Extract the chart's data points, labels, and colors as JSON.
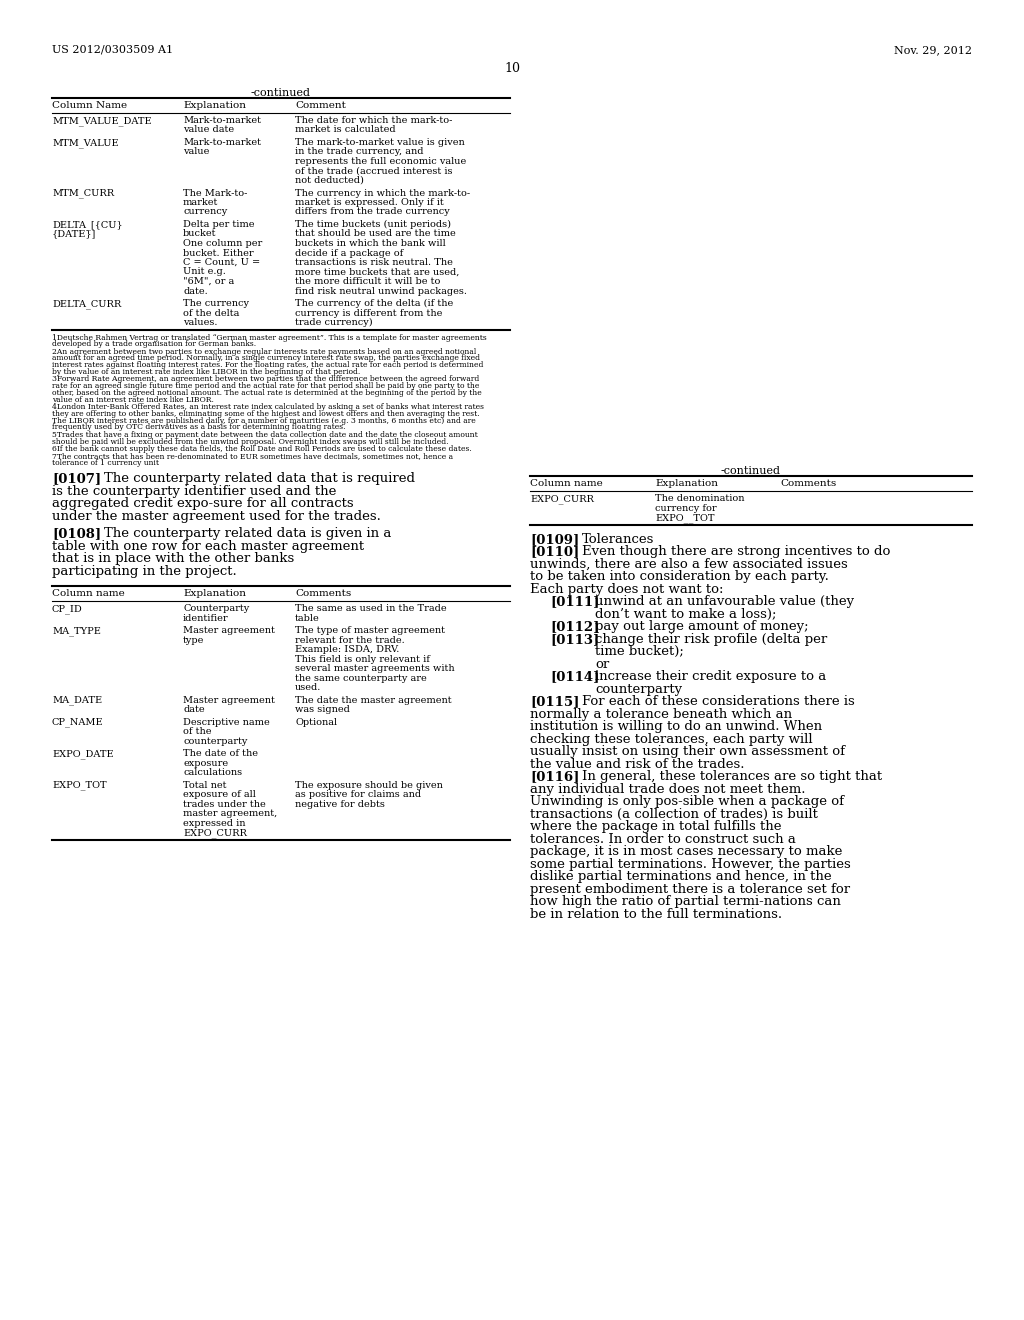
{
  "patent_number": "US 2012/0303509 A1",
  "date": "Nov. 29, 2012",
  "page_number": "10",
  "background_color": "#ffffff",
  "top_table_title": "-continued",
  "top_table_headers": [
    "Column Name",
    "Explanation",
    "Comment"
  ],
  "top_table_rows": [
    [
      "MTM_VALUE_DATE",
      "Mark-to-market\nvalue date",
      "The date for which the mark-to-\nmarket is calculated"
    ],
    [
      "MTM_VALUE",
      "Mark-to-market\nvalue",
      "The mark-to-market value is given\nin the trade currency, and\nrepresents the full economic value\nof the trade (accrued interest is\nnot deducted)"
    ],
    [
      "MTM_CURR",
      "The Mark-to-\nmarket\ncurrency",
      "The currency in which the mark-to-\nmarket is expressed. Only if it\ndiffers from the trade currency"
    ],
    [
      "DELTA_[{CU}\n{DATE}]",
      "Delta per time\nbucket\nOne column per\nbucket. Either\nC = Count, U =\nUnit e.g.\n\"6M\", or a\ndate.",
      "The time buckets (unit periods)\nthat should be used are the time\nbuckets in which the bank will\ndecide if a package of\ntransactions is risk neutral. The\nmore time buckets that are used,\nthe more difficult it will be to\nfind risk neutral unwind packages."
    ],
    [
      "DELTA_CURR",
      "The currency\nof the delta\nvalues.",
      "The currency of the delta (if the\ncurrency is different from the\ntrade currency)"
    ]
  ],
  "footnotes": [
    "1Deutsche Rahmen Vertrag or translated “German master agreement”. This is a template for master agreements\ndeveloped by a trade organisation for German banks.",
    "2An agreement between two parties to exchange regular interests rate payments based on an agreed notional\namount for an agreed time period. Normally, in a single currency interest rate swap, the parties exchange fixed\ninterest rates against floating interest rates. For the floating rates, the actual rate for each period is determined\nby the value of an interest rate index like LIBOR in the beginning of that period.",
    "3Forward Rate Agreement, an agreement between two parties that the difference between the agreed forward\nrate for an agreed single future time period and the actual rate for that period shall be paid by one party to the\nother, based on the agreed notional amount. The actual rate is determined at the beginning of the period by the\nvalue of an interest rate index like LIBOR.",
    "4London Inter-Bank Offered Rates, an interest rate index calculated by asking a set of banks what interest rates\nthey are offering to other banks, eliminating some of the highest and lowest offers and then averaging the rest.\nThe LIBOR interest rates are published daily, for a number of maturities (e.g. 3 months, 6 months etc) and are\nfrequently used by OTC derivatives as a basis for determining floating rates.",
    "5Trades that have a fixing or payment date between the data collection date and the date the closeout amount\nshould be paid will be excluded from the unwind proposal. Overnight index swaps will still be included.",
    "6If the bank cannot supply these data fields, the Roll Date and Roll Periods are used to calculate these dates.",
    "7The contracts that has been re-denominated to EUR sometimes have decimals, sometimes not, hence a\ntolerance of 1 currency unit"
  ],
  "left_paragraphs": [
    {
      "tag": "[0107]",
      "text": "The counterparty related data that is required is the counterparty identifier used and the aggregated credit expo-sure for all contracts under the master agreement used for the trades."
    },
    {
      "tag": "[0108]",
      "text": "The counterparty related data is given in a table with one row for each master agreement that is in place with the other banks participating in the project."
    }
  ],
  "left_table_headers": [
    "Column name",
    "Explanation",
    "Comments"
  ],
  "left_table_rows": [
    [
      "CP_ID",
      "Counterparty\nidentifier",
      "The same as used in the Trade\ntable"
    ],
    [
      "MA_TYPE",
      "Master agreement\ntype",
      "The type of master agreement\nrelevant for the trade.\nExample: ISDA, DRV.\nThis field is only relevant if\nseveral master agreements with\nthe same counterparty are\nused."
    ],
    [
      "MA_DATE",
      "Master agreement\ndate",
      "The date the master agreement\nwas signed"
    ],
    [
      "CP_NAME",
      "Descriptive name\nof the\ncounterparty",
      "Optional"
    ],
    [
      "EXPO_DATE",
      "The date of the\nexposure\ncalculations",
      ""
    ],
    [
      "EXPO_TOT",
      "Total net\nexposure of all\ntrades under the\nmaster agreement,\nexpressed in\nEXPO_CURR",
      "The exposure should be given\nas positive for claims and\nnegative for debts"
    ]
  ],
  "right_table_title": "-continued",
  "right_table_headers": [
    "Column name",
    "Explanation",
    "Comments"
  ],
  "right_table_rows": [
    [
      "EXPO_CURR",
      "The denomination\ncurrency for\nEXPO__TOT",
      ""
    ]
  ],
  "right_paragraphs": [
    {
      "tag": "[0109]",
      "text": "Tolerances",
      "indent": false,
      "or_after": false
    },
    {
      "tag": "[0110]",
      "text": "Even though there are strong incentives to do unwinds, there are also a few associated issues to be taken into consideration by each party. Each party does not want to:",
      "indent": false,
      "or_after": false
    },
    {
      "tag": "[0111]",
      "text": "unwind at an unfavourable value (they don’t want to make a loss);",
      "indent": true,
      "or_after": false
    },
    {
      "tag": "[0112]",
      "text": "pay out large amount of money;",
      "indent": true,
      "or_after": false
    },
    {
      "tag": "[0113]",
      "text": "change their risk profile (delta per time bucket);",
      "indent": true,
      "or_after": true
    },
    {
      "tag": "[0114]",
      "text": "increase their credit exposure to a counterparty",
      "indent": true,
      "or_after": false
    },
    {
      "tag": "[0115]",
      "text": "For each of these considerations there is normally a tolerance beneath which an institution is willing to do an unwind. When checking these tolerances, each party will usually insist on using their own assessment of the value and risk of the trades.",
      "indent": false,
      "or_after": false
    },
    {
      "tag": "[0116]",
      "text": "In general, these tolerances are so tight that any individual trade does not meet them. Unwinding is only pos-sible when a package of transactions (a collection of trades) is built where the package in total fulfills the tolerances. In order to construct such a package, it is in most cases necessary to make some partial terminations. However, the parties dislike partial terminations and hence, in the present embodiment there is a tolerance set for how high the ratio of partial termi-nations can be in relation to the full terminations.",
      "indent": false,
      "or_after": false
    }
  ]
}
